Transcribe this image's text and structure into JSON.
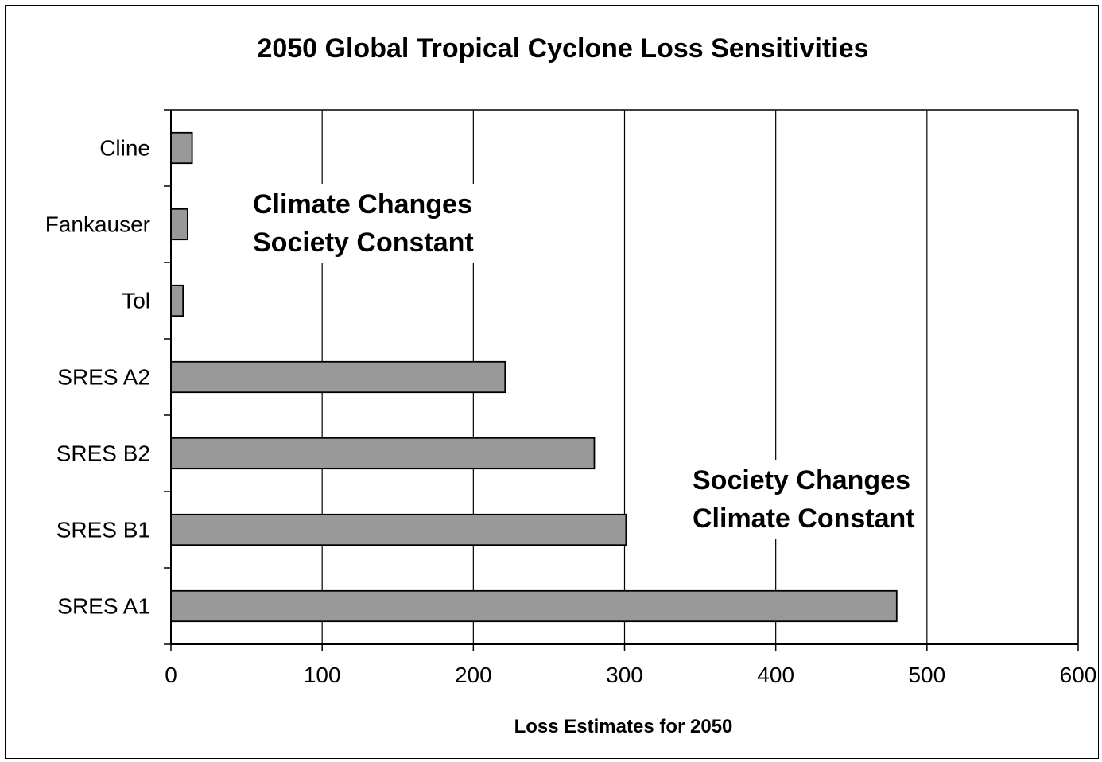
{
  "chart_data": {
    "type": "bar",
    "orientation": "horizontal",
    "title": "2050 Global Tropical Cyclone Loss Sensitivities",
    "xlabel": "Loss Estimates for 2050",
    "ylabel": "",
    "categories": [
      "Cline",
      "Fankauser",
      "Tol",
      "SRES A2",
      "SRES B2",
      "SRES B1",
      "SRES A1"
    ],
    "values": [
      14,
      11,
      8,
      221,
      280,
      301,
      480
    ],
    "xlim": [
      0,
      600
    ],
    "xticks": [
      0,
      100,
      200,
      300,
      400,
      500,
      600
    ],
    "xtick_labels": [
      "0",
      "100",
      "200",
      "300",
      "400",
      "500",
      "600"
    ],
    "grid": "vertical",
    "legend": "none",
    "annotations": [
      {
        "lines": [
          "Climate Changes",
          "Society Constant"
        ]
      },
      {
        "lines": [
          "Society Changes",
          "Climate Constant"
        ]
      }
    ],
    "colors": {
      "bar_fill": "#999999",
      "bar_stroke": "#000000",
      "gridline": "#000000",
      "background": "#ffffff"
    }
  }
}
